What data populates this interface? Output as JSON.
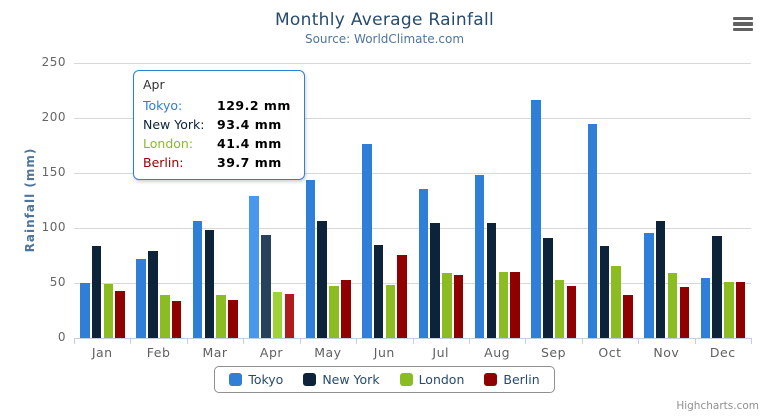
{
  "chart_data": {
    "type": "bar",
    "title": "Monthly Average Rainfall",
    "subtitle": "Source: WorldClimate.com",
    "categories": [
      "Jan",
      "Feb",
      "Mar",
      "Apr",
      "May",
      "Jun",
      "Jul",
      "Aug",
      "Sep",
      "Oct",
      "Nov",
      "Dec"
    ],
    "series": [
      {
        "name": "Tokyo",
        "color": "#2f7ed8",
        "hover_color": "#4a97ee",
        "values": [
          49.9,
          71.5,
          106.4,
          129.2,
          144.0,
          176.0,
          135.6,
          148.5,
          216.4,
          194.1,
          95.6,
          54.4
        ]
      },
      {
        "name": "New York",
        "color": "#0d233a",
        "hover_color": "#28415c",
        "values": [
          83.6,
          78.8,
          98.5,
          93.4,
          106.0,
          84.5,
          105.0,
          104.3,
          91.2,
          83.5,
          106.6,
          92.3
        ]
      },
      {
        "name": "London",
        "color": "#8bbc21",
        "hover_color": "#9ed335",
        "values": [
          48.9,
          38.8,
          39.3,
          41.4,
          47.0,
          48.3,
          59.0,
          59.6,
          52.4,
          65.2,
          59.3,
          51.2
        ]
      },
      {
        "name": "Berlin",
        "color": "#910000",
        "hover_color": "#b01b1b",
        "values": [
          42.4,
          33.2,
          34.5,
          39.7,
          52.6,
          75.5,
          57.4,
          60.4,
          47.6,
          39.1,
          46.8,
          51.1
        ]
      }
    ],
    "xlabel": "",
    "ylabel": "Rainfall (mm)",
    "ylim": [
      0,
      250
    ],
    "yticks": [
      0,
      50,
      100,
      150,
      200,
      250
    ],
    "grid": true,
    "legend_position": "bottom",
    "hovered_category_index": 3
  },
  "tooltip": {
    "header": "Apr",
    "rows": [
      {
        "label": "Tokyo:",
        "value": "129.2 mm",
        "color": "#2f7ed8"
      },
      {
        "label": "New York:",
        "value": "93.4 mm",
        "color": "#0d233a"
      },
      {
        "label": "London:",
        "value": "41.4 mm",
        "color": "#8bbc21"
      },
      {
        "label": "Berlin:",
        "value": "39.7 mm",
        "color": "#910000"
      }
    ]
  },
  "credits": {
    "text": "Highcharts.com"
  }
}
